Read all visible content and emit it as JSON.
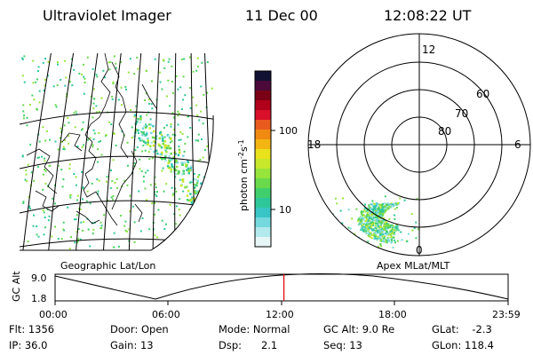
{
  "header": {
    "title": "Ultraviolet Imager",
    "date": "11 Dec 00",
    "time": "12:08:22 UT"
  },
  "colorbar": {
    "unit_label": "photon cm",
    "unit_sup1": "-2",
    "unit_mid": "s",
    "unit_sup2": "-1",
    "tick_100": "100",
    "tick_10": "10",
    "colors": [
      "#111133",
      "#4b0a3a",
      "#7a0016",
      "#b0001a",
      "#d8102a",
      "#e85a1e",
      "#f08a10",
      "#f3b512",
      "#e9e11b",
      "#c7e82b",
      "#97e43a",
      "#6ad94c",
      "#40cf6c",
      "#2ec79a",
      "#39c5c5",
      "#74d8dc",
      "#b2e9ec",
      "#e6f5f6"
    ]
  },
  "left_panel": {
    "label": "Geographic Lat/Lon"
  },
  "right_panel": {
    "label": "Apex MLat/MLT",
    "ring_labels": {
      "r80": "80",
      "r70": "70",
      "r60": "60"
    },
    "mlt_labels": {
      "top": "12",
      "left": "18",
      "right": "6",
      "bottom": "0"
    }
  },
  "timeline": {
    "ylabel": "GC Alt",
    "y_top": "9.0",
    "y_bottom": "1.8",
    "ticks": [
      "00:00",
      "06:00",
      "12:00",
      "18:00",
      "23:59"
    ],
    "marker_fraction": 0.505
  },
  "info": {
    "flt": "Flt: 1356",
    "ip": "IP: 36.0",
    "door": "Door: Open",
    "gain": "Gain: 13",
    "mode": "Mode: Normal",
    "dsp": "Dsp:      2.1",
    "gcalt": "GC Alt: 9.0 Re",
    "seq": "Seq: 13",
    "glat": "GLat:    -2.3",
    "glon": "GLon: 118.4"
  }
}
